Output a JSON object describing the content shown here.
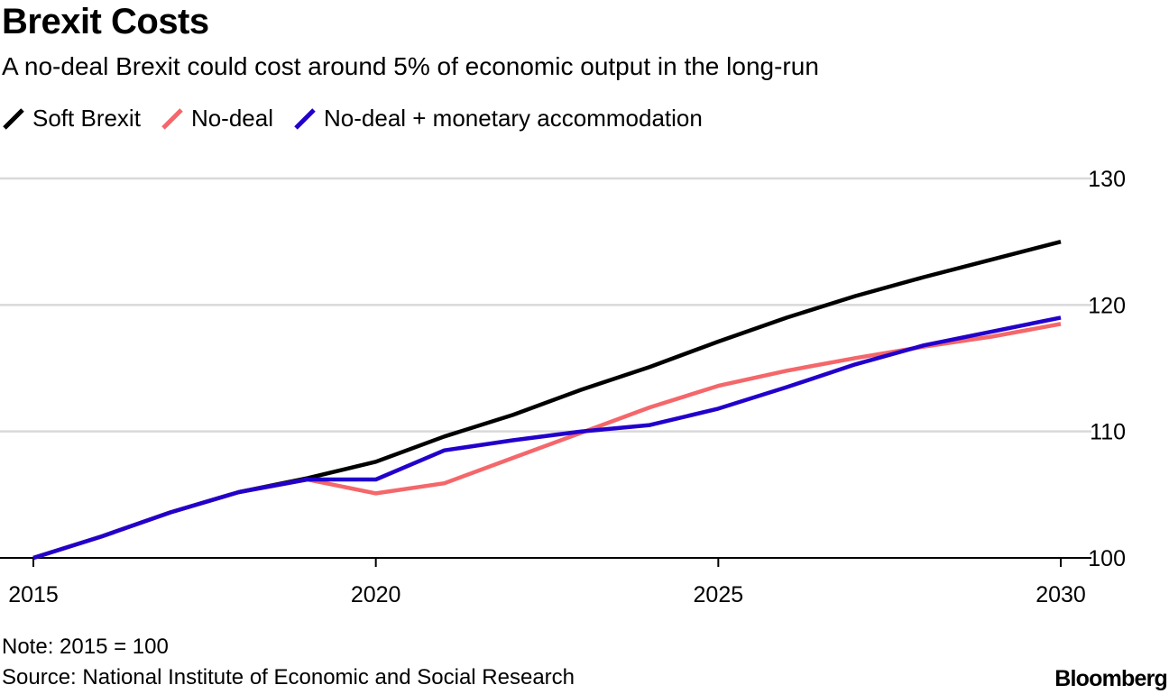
{
  "title": "Brexit Costs",
  "subtitle": "A no-deal Brexit could cost around 5% of economic output in the long-run",
  "note": "Note: 2015 = 100",
  "source": "Source: National Institute of Economic and Social Research",
  "brand": "Bloomberg",
  "chart_data": {
    "type": "line",
    "title": "Brexit Costs",
    "xlabel": "",
    "ylabel": "",
    "x": [
      2015,
      2016,
      2017,
      2018,
      2019,
      2020,
      2021,
      2022,
      2023,
      2024,
      2025,
      2026,
      2027,
      2028,
      2029,
      2030
    ],
    "xticks": [
      "2015",
      "2020",
      "2025",
      "2030"
    ],
    "yticks": [
      "100",
      "110",
      "120",
      "130"
    ],
    "xlim": [
      2015,
      2030
    ],
    "ylim": [
      100,
      130
    ],
    "grid": true,
    "legend_position": "top-left",
    "series": [
      {
        "name": "Soft Brexit",
        "color": "#000000",
        "values": [
          100.0,
          101.7,
          103.6,
          105.2,
          106.3,
          107.6,
          109.6,
          111.3,
          113.3,
          115.1,
          117.1,
          119.0,
          120.7,
          122.2,
          123.6,
          125.0
        ]
      },
      {
        "name": "No-deal",
        "color": "#f4676a",
        "values": [
          100.0,
          101.7,
          103.6,
          105.2,
          106.2,
          105.1,
          105.9,
          107.9,
          109.9,
          111.9,
          113.6,
          114.8,
          115.8,
          116.7,
          117.5,
          118.5
        ]
      },
      {
        "name": "No-deal + monetary accommodation",
        "color": "#2200cc",
        "values": [
          100.0,
          101.7,
          103.6,
          105.2,
          106.2,
          106.2,
          108.5,
          109.3,
          110.0,
          110.5,
          111.8,
          113.5,
          115.3,
          116.8,
          117.9,
          119.0
        ]
      }
    ]
  }
}
